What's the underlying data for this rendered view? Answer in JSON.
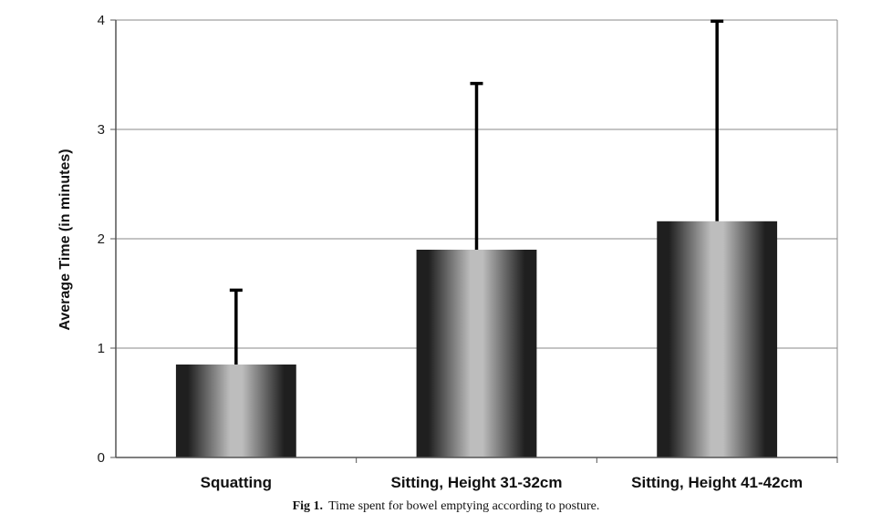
{
  "caption": {
    "label": "Fig 1.",
    "text": "Time spent for bowel emptying according to posture."
  },
  "chart_data": {
    "type": "bar",
    "categories": [
      "Squatting",
      "Sitting, Height 31-32cm",
      "Sitting, Height 41-42cm"
    ],
    "values": [
      0.85,
      1.9,
      2.16
    ],
    "error_upper": [
      1.53,
      3.42,
      3.99
    ],
    "ylabel": "Average Time  (in minutes)",
    "ylim": [
      0,
      4
    ],
    "yticks": [
      0,
      1,
      2,
      3,
      4
    ],
    "grid": true,
    "colors": {
      "bar_dark": "#1f1f1f",
      "bar_light": "#bdbdbd",
      "grid": "#8a8a8a",
      "axis": "#555555"
    }
  }
}
